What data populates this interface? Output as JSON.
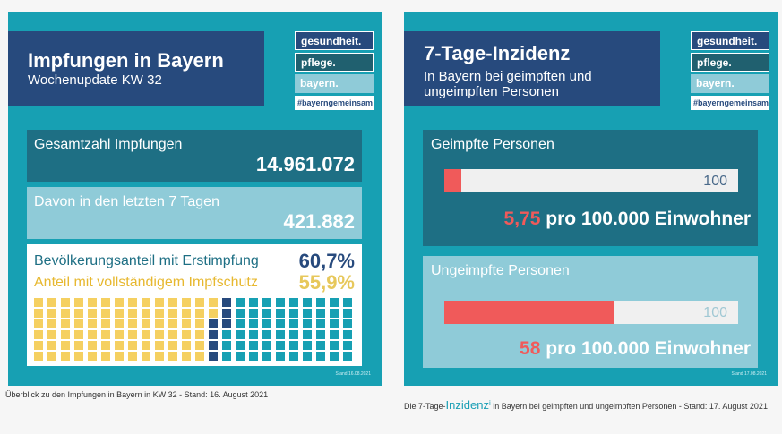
{
  "left_panel": {
    "title": "Impfungen in Bayern",
    "subtitle": "Wochenupdate KW 32",
    "logo": [
      "gesundheit.",
      "pflege.",
      "bayern.",
      "#bayerngemeinsam"
    ],
    "total_label": "Gesamtzahl Impfungen",
    "total_value": "14.961.072",
    "week_label": "Davon in den letzten 7 Tagen",
    "week_value": "421.882",
    "first_dose_label": "Bevölkerungsanteil mit Erstimpfung",
    "first_dose_value": "60,7%",
    "full_label": "Anteil mit vollständigem Impfschutz",
    "full_value": "55,9%",
    "first_dose_fraction": 0.607,
    "full_fraction": 0.559,
    "stand": "Stand 16.08.2021",
    "colors": {
      "full": "#f5d061",
      "first": "#274a7d",
      "none": "#17a0b3"
    }
  },
  "right_panel": {
    "title": "7-Tage-Inzidenz",
    "subtitle": "In Bayern bei geimpften und ungeimpften Personen",
    "logo": [
      "gesundheit.",
      "pflege.",
      "bayern.",
      "#bayerngemeinsam"
    ],
    "vaccinated": {
      "label": "Geimpfte Personen",
      "scale": "100",
      "rate": "5,75",
      "rate_value": 5.75,
      "unit": "pro 100.000 Einwohner"
    },
    "unvaccinated": {
      "label": "Ungeimpfte Personen",
      "scale": "100",
      "rate": "58",
      "rate_value": 58,
      "unit": "pro 100.000 Einwohner"
    },
    "stand": "Stand 17.08.2021"
  },
  "captions": {
    "left": "Überblick zu den Impfungen in Bayern in KW 32 - Stand: 16. August 2021",
    "right_pre": "Die 7-Tage-",
    "right_link": "Inzidenz",
    "right_sup": "i",
    "right_post": " in Bayern bei geimpften und ungeimpften Personen - Stand: 17. August 2021"
  }
}
